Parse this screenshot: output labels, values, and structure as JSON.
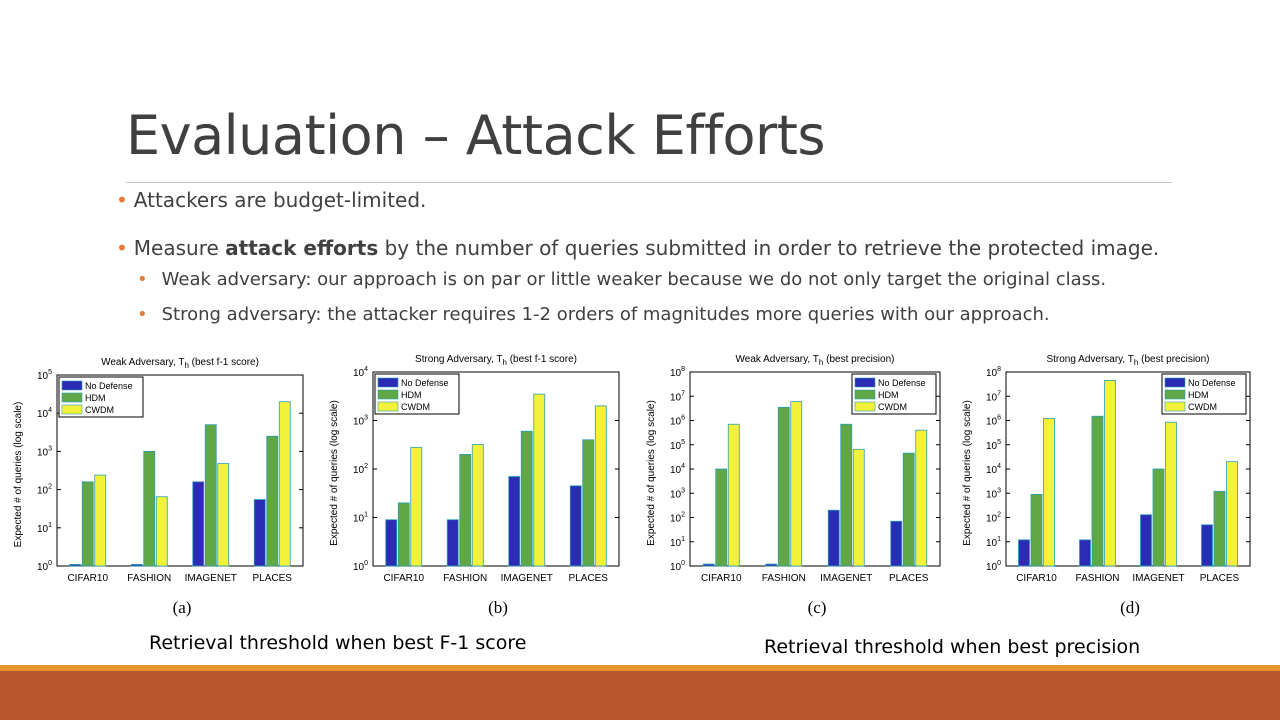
{
  "slide": {
    "title": "Evaluation – Attack Efforts",
    "bullets": [
      {
        "text": "Attackers are budget-limited."
      },
      {
        "pre": "Measure ",
        "bold": "attack efforts",
        "post": " by the number of queries submitted in order to retrieve the protected image."
      },
      {
        "text": "Weak adversary: our approach is on par or little weaker because we do not only target the original class."
      },
      {
        "text": "Strong adversary: the attacker requires 1-2 orders of magnitudes more queries with our approach."
      }
    ],
    "caption_left": "Retrieval threshold when best F-1 score",
    "caption_right": "Retrieval threshold when best precision"
  },
  "colors": {
    "accent": "#e07b39",
    "footer": "#b7562b",
    "footer_thin": "#e8952c",
    "series": [
      "#2b2bb5",
      "#5fa845",
      "#f2f23a"
    ]
  },
  "chart_data": [
    {
      "type": "bar",
      "title": "Weak Adversary, T",
      "title_sub": "h",
      "title_suffix": "(best f-1 score)",
      "ylabel": "Expected # of queries (log scale)",
      "yscale": "log",
      "ylim_exp": [
        0,
        5
      ],
      "categories": [
        "CIFAR10",
        "FASHION",
        "IMAGENET",
        "PLACES"
      ],
      "series": [
        {
          "name": "No Defense",
          "values": [
            1.1,
            1.1,
            160,
            55
          ]
        },
        {
          "name": "HDM",
          "values": [
            160,
            1000,
            5000,
            2500
          ]
        },
        {
          "name": "CWDM",
          "values": [
            240,
            65,
            480,
            20000
          ]
        }
      ],
      "legend": "top-left",
      "label": "(a)"
    },
    {
      "type": "bar",
      "title": "Strong Adversary, T",
      "title_sub": "h",
      "title_suffix": "(best f-1 score)",
      "ylabel": "Expected # of queries (log scale)",
      "yscale": "log",
      "ylim_exp": [
        0,
        4
      ],
      "categories": [
        "CIFAR10",
        "FASHION",
        "IMAGENET",
        "PLACES"
      ],
      "series": [
        {
          "name": "No Defense",
          "values": [
            9,
            9,
            70,
            45
          ]
        },
        {
          "name": "HDM",
          "values": [
            20,
            200,
            600,
            400
          ]
        },
        {
          "name": "CWDM",
          "values": [
            280,
            320,
            3500,
            2000
          ]
        }
      ],
      "legend": "top-left",
      "label": "(b)"
    },
    {
      "type": "bar",
      "title": "Weak Adversary, T",
      "title_sub": "h",
      "title_suffix": "(best precision)",
      "ylabel": "Expected # of queries (log scale)",
      "yscale": "log",
      "ylim_exp": [
        0,
        8
      ],
      "categories": [
        "CIFAR10",
        "FASHION",
        "IMAGENET",
        "PLACES"
      ],
      "series": [
        {
          "name": "No Defense",
          "values": [
            1.2,
            1.2,
            200,
            70
          ]
        },
        {
          "name": "HDM",
          "values": [
            10000,
            3500000,
            700000,
            45000
          ]
        },
        {
          "name": "CWDM",
          "values": [
            700000,
            6000000,
            65000,
            400000
          ]
        }
      ],
      "legend": "top-right",
      "label": "(c)"
    },
    {
      "type": "bar",
      "title": "Strong Adversary, T",
      "title_sub": "h",
      "title_suffix": "(best precision)",
      "ylabel": "Expected # of queries (log scale)",
      "yscale": "log",
      "ylim_exp": [
        0,
        8
      ],
      "categories": [
        "CIFAR10",
        "FASHION",
        "IMAGENET",
        "PLACES"
      ],
      "series": [
        {
          "name": "No Defense",
          "values": [
            12,
            12,
            130,
            50
          ]
        },
        {
          "name": "HDM",
          "values": [
            900,
            1500000,
            10000,
            1200
          ]
        },
        {
          "name": "CWDM",
          "values": [
            1200000,
            45000000,
            850000,
            20000
          ]
        }
      ],
      "legend": "top-right",
      "label": "(d)"
    }
  ]
}
